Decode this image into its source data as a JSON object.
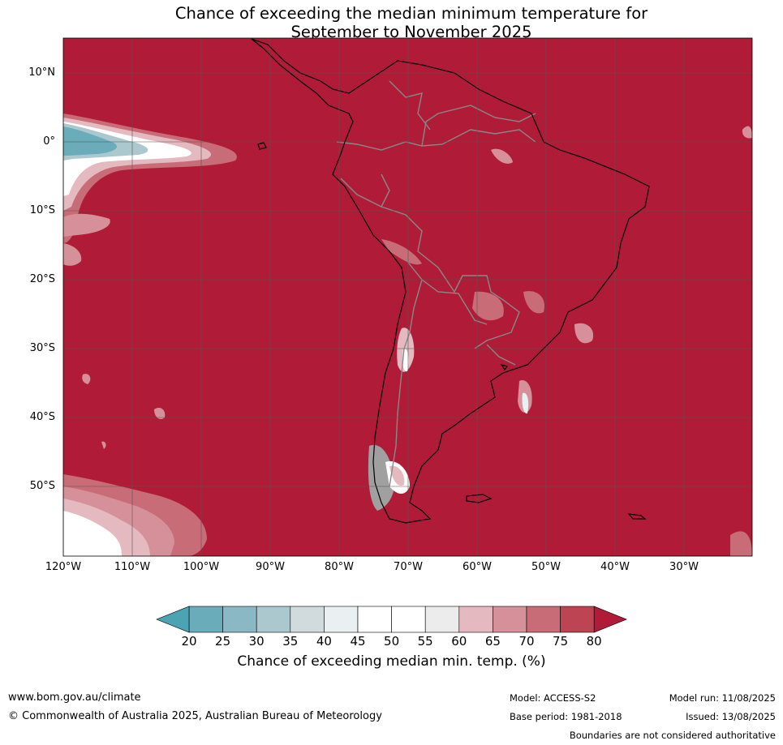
{
  "title_line1": "Chance of exceeding the median minimum temperature for",
  "title_line2": "September to November 2025",
  "lat_labels": [
    "10°N",
    "0°",
    "10°S",
    "20°S",
    "30°S",
    "40°S",
    "50°S"
  ],
  "lon_labels": [
    "120°W",
    "110°W",
    "100°W",
    "90°W",
    "80°W",
    "70°W",
    "60°W",
    "50°W",
    "40°W",
    "30°W"
  ],
  "colorbar": {
    "ticks": [
      "20",
      "25",
      "30",
      "35",
      "40",
      "45",
      "50",
      "55",
      "60",
      "65",
      "70",
      "75",
      "80"
    ],
    "colors": [
      "#6aacba",
      "#8ab8c4",
      "#abc8ce",
      "#d1dadc",
      "#eaf0f2",
      "#ffffff",
      "#ffffff",
      "#ececec",
      "#e4b9bf",
      "#d6909a",
      "#c86c77",
      "#bd4452"
    ],
    "under_color": "#4ba3b3",
    "over_color": "#b01c37",
    "caption": "Chance of exceeding median min. temp. (%)"
  },
  "colors": {
    "dominant": "#b01c37",
    "grid": "#555555"
  },
  "footer": {
    "website": "www.bom.gov.au/climate",
    "copyright": "© Commonwealth of Australia 2025, Australian Bureau of Meteorology",
    "model": "Model: ACCESS-S2",
    "base_period": "Base period: 1981-2018",
    "model_run": "Model run: 11/08/2025",
    "issued": "Issued: 13/08/2025",
    "disclaimer": "Boundaries are not considered authoritative"
  }
}
